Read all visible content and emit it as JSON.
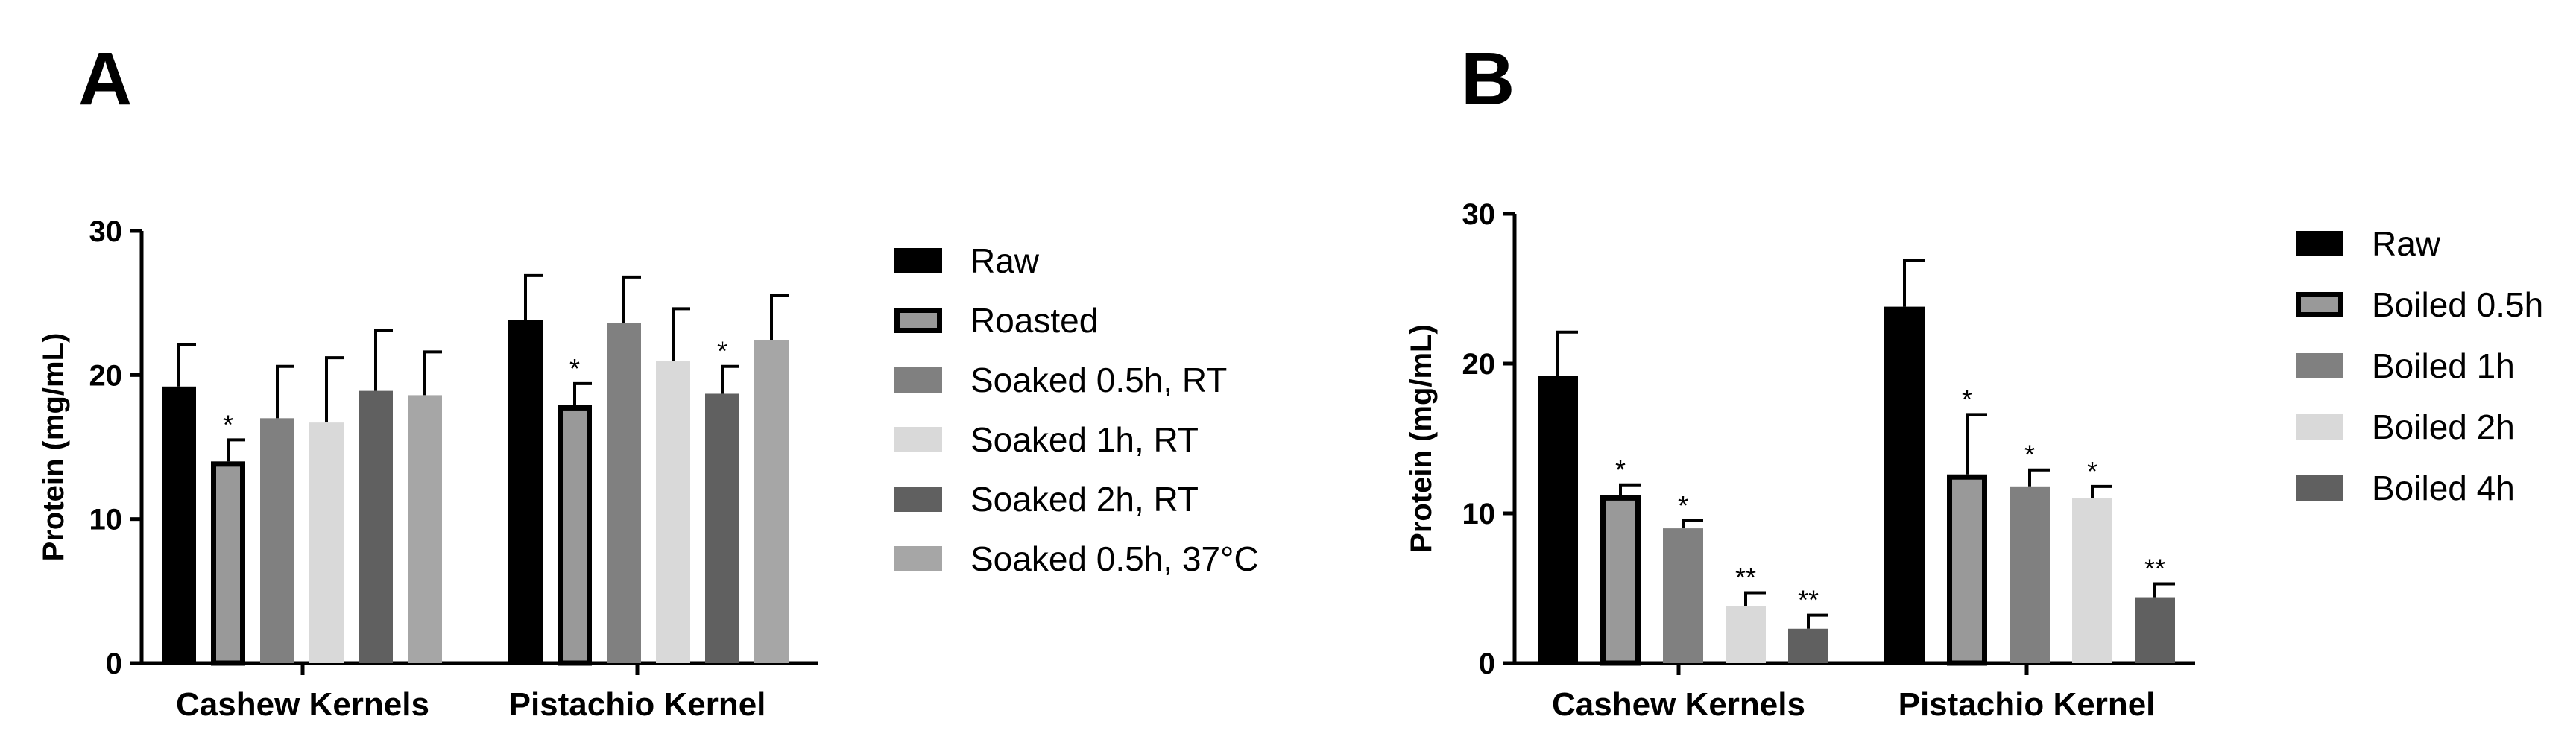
{
  "chart_data": [
    {
      "panel": "A",
      "type": "bar",
      "ylabel": "Protein (mg/mL)",
      "xlabel": "",
      "ylim": [
        0,
        30
      ],
      "yticks": [
        0,
        10,
        20,
        30
      ],
      "categories": [
        "Cashew Kernels",
        "Pistachio Kernel"
      ],
      "legend_position": "right",
      "series": [
        {
          "name": "Raw",
          "color": "#000000",
          "outline": false,
          "values": [
            19.2,
            23.8
          ],
          "errors": [
            2.9,
            3.1
          ],
          "annotations": [
            "",
            ""
          ]
        },
        {
          "name": "Roasted",
          "color": "#999999",
          "outline": true,
          "values": [
            14.0,
            17.9
          ],
          "errors": [
            1.5,
            1.5
          ],
          "annotations": [
            "*",
            "*"
          ]
        },
        {
          "name": "Soaked 0.5h, RT",
          "color": "#808080",
          "outline": false,
          "values": [
            17.0,
            23.6
          ],
          "errors": [
            3.6,
            3.2
          ],
          "annotations": [
            "",
            ""
          ]
        },
        {
          "name": "Soaked 1h, RT",
          "color": "#d9d9d9",
          "outline": false,
          "values": [
            16.7,
            21.0
          ],
          "errors": [
            4.5,
            3.6
          ],
          "annotations": [
            "",
            ""
          ]
        },
        {
          "name": "Soaked 2h, RT",
          "color": "#606060",
          "outline": false,
          "values": [
            18.9,
            18.7
          ],
          "errors": [
            4.2,
            1.9
          ],
          "annotations": [
            "",
            "*"
          ]
        },
        {
          "name": "Soaked 0.5h, 37°C",
          "color": "#a6a6a6",
          "outline": false,
          "values": [
            18.6,
            22.4
          ],
          "errors": [
            3.0,
            3.1
          ],
          "annotations": [
            "",
            ""
          ]
        }
      ]
    },
    {
      "panel": "B",
      "type": "bar",
      "ylabel": "Protein (mg/mL)",
      "xlabel": "",
      "ylim": [
        0,
        30
      ],
      "yticks": [
        0,
        10,
        20,
        30
      ],
      "categories": [
        "Cashew Kernels",
        "Pistachio Kernel"
      ],
      "legend_position": "right",
      "series": [
        {
          "name": "Raw",
          "color": "#000000",
          "outline": false,
          "values": [
            19.2,
            23.8
          ],
          "errors": [
            2.9,
            3.1
          ],
          "annotations": [
            "",
            ""
          ]
        },
        {
          "name": "Boiled 0.5h",
          "color": "#999999",
          "outline": true,
          "values": [
            11.2,
            12.6
          ],
          "errors": [
            0.7,
            4.0
          ],
          "annotations": [
            "*",
            "*"
          ]
        },
        {
          "name": "Boiled 1h",
          "color": "#808080",
          "outline": false,
          "values": [
            9.0,
            11.8
          ],
          "errors": [
            0.5,
            1.1
          ],
          "annotations": [
            "*",
            "*"
          ]
        },
        {
          "name": "Boiled 2h",
          "color": "#d9d9d9",
          "outline": false,
          "values": [
            3.8,
            11.0
          ],
          "errors": [
            0.9,
            0.8
          ],
          "annotations": [
            "**",
            "*"
          ]
        },
        {
          "name": "Boiled 4h",
          "color": "#606060",
          "outline": false,
          "values": [
            2.3,
            4.4
          ],
          "errors": [
            0.9,
            0.9
          ],
          "annotations": [
            "**",
            "**"
          ]
        }
      ]
    }
  ]
}
